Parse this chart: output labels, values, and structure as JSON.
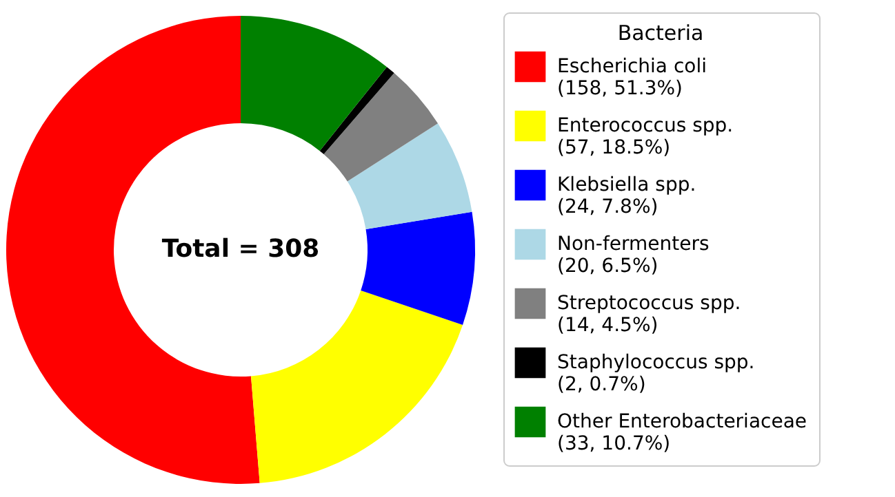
{
  "chart_data": {
    "type": "donut",
    "legend_title": "Bacteria",
    "legend": "right",
    "categories": [
      "Escherichia coli",
      "Enterococcus spp.",
      "Klebsiella spp.",
      "Non-fermenters",
      "Streptococcus spp.",
      "Staphylococcus spp.",
      "Other Enterobacteriaceae"
    ],
    "values": [
      158,
      57,
      24,
      20,
      14,
      2,
      33
    ],
    "value_labels": [
      "(158, 51.3%)",
      "(57, 18.5%)",
      "(24, 7.8%)",
      "(20, 6.5%)",
      "(14, 4.5%)",
      "(2, 0.7%)",
      "(33, 10.7%)"
    ],
    "colors": [
      "#ff0000",
      "#ffff00",
      "#0000ff",
      "#add8e6",
      "#808080",
      "#000000",
      "#008000"
    ],
    "annotations": [
      "Total = 308"
    ]
  }
}
